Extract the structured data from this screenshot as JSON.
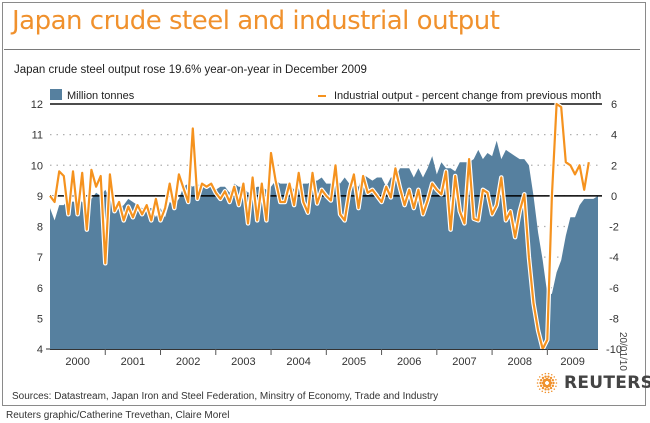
{
  "header": {
    "title": "Japan crude steel and industrial output",
    "subtitle": "Japan crude steel output rose 19.6% year-on-year in December 2009"
  },
  "footer": {
    "sources": "Sources: Datastream, Japan Iron and Steel Federation, Minsitry of Economy, Trade and Industry",
    "credit": "Reuters graphic/Catherine Trevethan, Claire Morel",
    "date_stamp": "20/01/10",
    "logo_text": "REUTERS"
  },
  "colors": {
    "title": "#f0912d",
    "area": "#56809f",
    "line": "#f5921e",
    "line_halo": "#ffffff",
    "zero_line": "#000000"
  },
  "chart_data": {
    "type": "area+line",
    "title": "Japan crude steel and industrial output",
    "subtitle": "Japan crude steel output rose 19.6% year-on-year in December 2009",
    "x_categories": [
      "2000",
      "2001",
      "2002",
      "2003",
      "2004",
      "2005",
      "2006",
      "2007",
      "2008",
      "2009"
    ],
    "x_frequency": "monthly",
    "grid": "dotted horizontal",
    "legend_placement": "top",
    "left_axis": {
      "label": "Million tonnes",
      "min": 4,
      "max": 12,
      "ticks": [
        "12",
        "11",
        "10",
        "9",
        "8",
        "7",
        "6",
        "5",
        "4"
      ]
    },
    "right_axis": {
      "label": "Industrial output - percent change from previous month",
      "min": -10,
      "max": 6,
      "ticks": [
        "6",
        "4",
        "2",
        "0",
        "-2",
        "-4",
        "-6",
        "-8",
        "-10"
      ]
    },
    "series": [
      {
        "name": "Million tonnes",
        "type": "area",
        "axis": "left",
        "values": [
          8.6,
          8.2,
          8.7,
          8.7,
          8.9,
          8.8,
          8.9,
          8.8,
          8.7,
          8.9,
          9.1,
          9.0,
          9.2,
          8.9,
          8.8,
          8.6,
          8.7,
          8.9,
          8.8,
          8.7,
          8.6,
          8.6,
          8.6,
          8.3,
          8.6,
          8.3,
          8.8,
          8.7,
          8.9,
          9.3,
          9.4,
          9.3,
          9.4,
          9.3,
          9.3,
          9.3,
          9.2,
          9.3,
          9.3,
          9.1,
          9.4,
          9.3,
          9.3,
          9.1,
          9.2,
          9.3,
          9.3,
          9.2,
          9.3,
          9.5,
          9.4,
          9.4,
          9.4,
          9.2,
          9.3,
          9.4,
          9.4,
          9.5,
          9.5,
          9.6,
          9.4,
          9.4,
          9.6,
          9.4,
          9.6,
          9.4,
          9.4,
          9.3,
          9.7,
          9.6,
          9.5,
          9.6,
          9.6,
          9.3,
          9.6,
          9.6,
          9.9,
          9.9,
          9.9,
          9.6,
          9.9,
          9.6,
          9.9,
          10.3,
          9.7,
          10.1,
          9.9,
          9.9,
          9.8,
          10.1,
          10.1,
          10.1,
          10.2,
          10.5,
          10.2,
          10.4,
          10.3,
          10.8,
          10.2,
          10.5,
          10.4,
          10.3,
          10.2,
          10.2,
          10.0,
          9.0,
          7.8,
          6.9,
          5.8,
          5.8,
          6.5,
          6.9,
          7.7,
          8.3,
          8.3,
          8.7,
          8.9,
          8.9,
          8.9,
          9.0
        ]
      },
      {
        "name": "Industrial output - percent change from previous month",
        "type": "line",
        "axis": "right",
        "values": [
          0.0,
          -0.4,
          1.6,
          1.3,
          -1.2,
          1.6,
          -1.2,
          1.5,
          -2.2,
          1.7,
          0.6,
          1.3,
          -4.4,
          1.4,
          -1.0,
          -0.4,
          -1.6,
          -0.7,
          -1.4,
          -0.6,
          -1.2,
          -0.6,
          -1.6,
          -0.2,
          -1.6,
          -0.8,
          0.8,
          -0.8,
          1.4,
          0.5,
          -0.4,
          4.4,
          -0.2,
          0.8,
          0.6,
          0.8,
          0.2,
          -0.2,
          0.3,
          -0.4,
          0.6,
          -0.6,
          0.8,
          -1.8,
          1.2,
          -1.6,
          0.8,
          -1.6,
          2.8,
          1.0,
          -0.4,
          -0.4,
          0.8,
          -0.6,
          1.5,
          -0.4,
          -1.1,
          1.5,
          -0.5,
          0.4,
          0.0,
          -0.3,
          2.0,
          -1.2,
          -1.6,
          0.3,
          1.4,
          -0.8,
          1.3,
          0.2,
          0.4,
          0.0,
          -0.4,
          0.6,
          -0.1,
          1.8,
          0.5,
          -0.6,
          0.4,
          -0.8,
          0.4,
          -1.2,
          -0.3,
          0.8,
          0.4,
          0.1,
          1.6,
          -2.2,
          1.3,
          -1.0,
          -1.8,
          2.4,
          -1.5,
          -1.6,
          0.4,
          0.2,
          -1.2,
          -0.6,
          1.2,
          -1.6,
          -1.0,
          -2.7,
          -1.0,
          0.1,
          -4.0,
          -7.0,
          -8.8,
          -10.0,
          -9.4,
          0.0,
          6.0,
          5.8,
          2.2,
          2.0,
          1.4,
          2.0,
          0.4,
          2.2,
          null,
          null
        ]
      }
    ]
  }
}
